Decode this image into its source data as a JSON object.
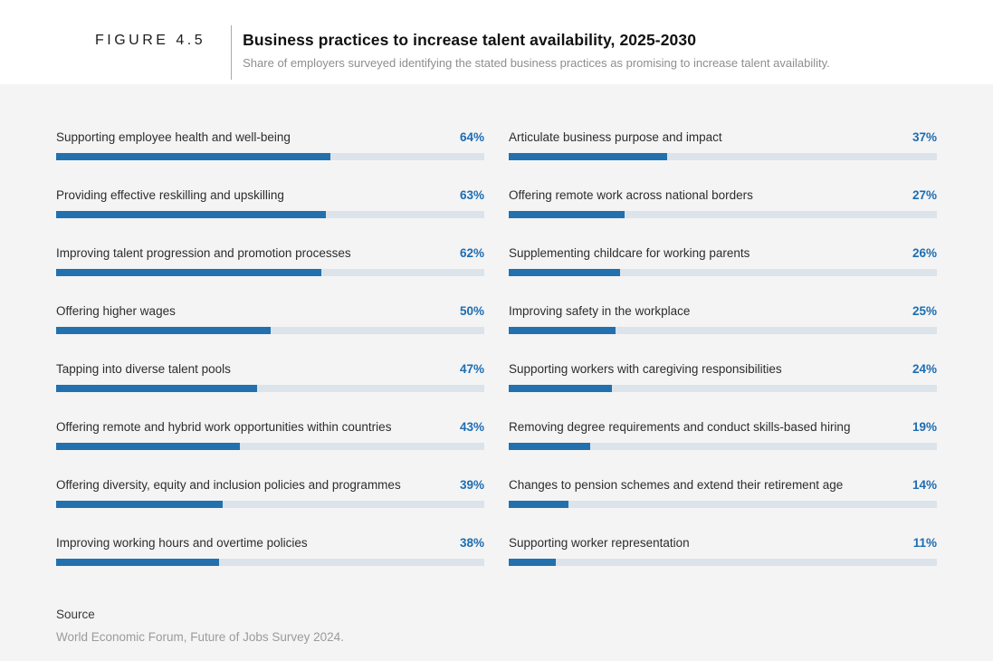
{
  "header": {
    "figure_label": "FIGURE 4.5",
    "title": "Business practices to increase talent availability, 2025-2030",
    "subtitle": "Share of employers surveyed identifying the stated business practices as promising to increase talent availability."
  },
  "chart_data": {
    "type": "bar",
    "orientation": "horizontal",
    "title": "Business practices to increase talent availability, 2025-2030",
    "value_unit": "%",
    "value_suffix": "%",
    "value_range": [
      0,
      100
    ],
    "grid": false,
    "legend": false,
    "layout": {
      "columns": 2,
      "items_per_column": 8,
      "order": "column-major"
    },
    "categories": [
      "Supporting employee health and well-being",
      "Providing effective reskilling and upskilling",
      "Improving talent progression and promotion processes",
      "Offering higher wages",
      "Tapping into diverse talent pools",
      "Offering remote and hybrid work opportunities within countries",
      "Offering diversity, equity and inclusion policies and programmes",
      "Improving working hours and overtime policies",
      "Articulate business purpose and impact",
      "Offering remote work across national borders",
      "Supplementing childcare for working parents",
      "Improving safety in the workplace",
      "Supporting workers with caregiving responsibilities",
      "Removing degree requirements and conduct skills-based hiring",
      "Changes to pension schemes and extend their retirement age",
      "Supporting worker representation"
    ],
    "values": [
      64,
      63,
      62,
      50,
      47,
      43,
      39,
      38,
      37,
      27,
      26,
      25,
      24,
      19,
      14,
      11
    ]
  },
  "colors": {
    "bar_fill": "#2271ae",
    "bar_track": "#dce3ea",
    "value_text": "#1d6db2",
    "panel_background": "#f4f4f4"
  },
  "source": {
    "heading": "Source",
    "text": "World Economic Forum, Future of Jobs Survey 2024."
  }
}
